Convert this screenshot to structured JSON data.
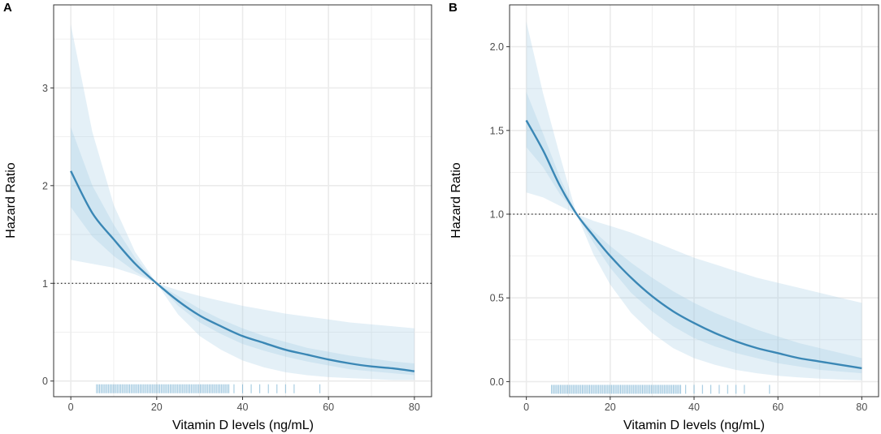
{
  "chart_data": [
    {
      "panel": "A",
      "type": "line",
      "xlabel": "Vitamin D levels (ng/mL)",
      "ylabel": "Hazard Ratio",
      "xlim": [
        -4,
        84
      ],
      "ylim": [
        -0.16,
        3.85
      ],
      "x_ticks": [
        0,
        20,
        40,
        60,
        80
      ],
      "x_tick_labels": [
        "0",
        "20",
        "40",
        "60",
        "80"
      ],
      "y_ticks": [
        0,
        1,
        2,
        3
      ],
      "y_tick_labels": [
        "0",
        "1",
        "2",
        "3"
      ],
      "reference_line_y": 1,
      "grid": true,
      "colors": {
        "line": "#3a87b5",
        "band": "#9ec9e2",
        "rug": "#7fb5d5",
        "grid": "#ebebeb",
        "border": "#333333"
      },
      "series": [
        {
          "name": "Hazard Ratio",
          "x": [
            0,
            5,
            10,
            15,
            20,
            25,
            30,
            35,
            40,
            45,
            50,
            55,
            60,
            65,
            70,
            75,
            80
          ],
          "values": [
            2.15,
            1.72,
            1.45,
            1.2,
            1.0,
            0.82,
            0.67,
            0.56,
            0.46,
            0.39,
            0.32,
            0.27,
            0.22,
            0.18,
            0.15,
            0.13,
            0.1
          ]
        },
        {
          "name": "Inner band upper",
          "x": [
            0,
            5,
            10,
            15,
            20,
            25,
            30,
            35,
            40,
            45,
            50,
            55,
            60,
            65,
            70,
            75,
            80
          ],
          "values": [
            2.6,
            2.0,
            1.6,
            1.26,
            1.0,
            0.87,
            0.74,
            0.63,
            0.54,
            0.46,
            0.4,
            0.34,
            0.3,
            0.26,
            0.23,
            0.2,
            0.18
          ]
        },
        {
          "name": "Inner band lower",
          "x": [
            0,
            5,
            10,
            15,
            20,
            25,
            30,
            35,
            40,
            45,
            50,
            55,
            60,
            65,
            70,
            75,
            80
          ],
          "values": [
            1.78,
            1.48,
            1.28,
            1.12,
            1.0,
            0.77,
            0.6,
            0.48,
            0.38,
            0.31,
            0.25,
            0.2,
            0.16,
            0.12,
            0.1,
            0.08,
            0.06
          ]
        },
        {
          "name": "Outer band upper",
          "x": [
            0,
            5,
            10,
            15,
            20,
            25,
            30,
            35,
            40,
            45,
            50,
            55,
            60,
            65,
            70,
            75,
            80
          ],
          "values": [
            3.65,
            2.55,
            1.8,
            1.32,
            1.0,
            0.93,
            0.87,
            0.82,
            0.77,
            0.73,
            0.69,
            0.66,
            0.63,
            0.6,
            0.58,
            0.56,
            0.54
          ]
        },
        {
          "name": "Outer band lower",
          "x": [
            0,
            5,
            10,
            15,
            20,
            25,
            30,
            35,
            40,
            45,
            50,
            55,
            60,
            65,
            70,
            75,
            80
          ],
          "values": [
            1.24,
            1.2,
            1.16,
            1.09,
            1.0,
            0.68,
            0.46,
            0.32,
            0.21,
            0.14,
            0.09,
            0.06,
            0.04,
            0.03,
            0.02,
            0.01,
            0.01
          ]
        }
      ],
      "rug_range": [
        6,
        58
      ],
      "rug_sparse_x": [
        38,
        40,
        42,
        44,
        46,
        48,
        50,
        52,
        58
      ]
    },
    {
      "panel": "B",
      "type": "line",
      "xlabel": "Vitamin D levels (ng/mL)",
      "ylabel": "Hazard Ratio",
      "xlim": [
        -4,
        84
      ],
      "ylim": [
        -0.09,
        2.25
      ],
      "x_ticks": [
        0,
        20,
        40,
        60,
        80
      ],
      "x_tick_labels": [
        "0",
        "20",
        "40",
        "60",
        "80"
      ],
      "y_ticks": [
        0,
        0.5,
        1,
        1.5,
        2
      ],
      "y_tick_labels": [
        "0.0",
        "0.5",
        "1.0",
        "1.5",
        "2.0"
      ],
      "reference_line_y": 1,
      "grid": true,
      "colors": {
        "line": "#3a87b5",
        "band": "#9ec9e2",
        "rug": "#7fb5d5",
        "grid": "#ebebeb",
        "border": "#333333"
      },
      "series": [
        {
          "name": "Hazard Ratio",
          "x": [
            0,
            4,
            8,
            12,
            16,
            20,
            25,
            30,
            35,
            40,
            45,
            50,
            55,
            60,
            65,
            70,
            75,
            80
          ],
          "values": [
            1.56,
            1.38,
            1.17,
            1.0,
            0.87,
            0.75,
            0.62,
            0.51,
            0.42,
            0.35,
            0.29,
            0.24,
            0.2,
            0.17,
            0.14,
            0.12,
            0.1,
            0.08
          ]
        },
        {
          "name": "Inner band upper",
          "x": [
            0,
            4,
            8,
            12,
            16,
            20,
            25,
            30,
            35,
            40,
            45,
            50,
            55,
            60,
            65,
            70,
            75,
            80
          ],
          "values": [
            1.73,
            1.48,
            1.22,
            1.0,
            0.9,
            0.81,
            0.71,
            0.62,
            0.54,
            0.47,
            0.41,
            0.36,
            0.31,
            0.27,
            0.23,
            0.2,
            0.17,
            0.14
          ]
        },
        {
          "name": "Inner band lower",
          "x": [
            0,
            4,
            8,
            12,
            16,
            20,
            25,
            30,
            35,
            40,
            45,
            50,
            55,
            60,
            65,
            70,
            75,
            80
          ],
          "values": [
            1.4,
            1.28,
            1.12,
            1.0,
            0.83,
            0.68,
            0.53,
            0.42,
            0.33,
            0.26,
            0.21,
            0.17,
            0.14,
            0.11,
            0.09,
            0.07,
            0.06,
            0.05
          ]
        },
        {
          "name": "Outer band upper",
          "x": [
            0,
            4,
            8,
            12,
            16,
            20,
            25,
            30,
            35,
            40,
            45,
            50,
            55,
            60,
            65,
            70,
            75,
            80
          ],
          "values": [
            2.15,
            1.72,
            1.35,
            1.0,
            0.96,
            0.93,
            0.89,
            0.84,
            0.79,
            0.74,
            0.7,
            0.66,
            0.62,
            0.59,
            0.56,
            0.53,
            0.5,
            0.47
          ]
        },
        {
          "name": "Outer band lower",
          "x": [
            0,
            4,
            8,
            12,
            16,
            20,
            25,
            30,
            35,
            40,
            45,
            50,
            55,
            60,
            65,
            70,
            75,
            80
          ],
          "values": [
            1.13,
            1.1,
            1.05,
            1.0,
            0.76,
            0.58,
            0.41,
            0.29,
            0.2,
            0.14,
            0.1,
            0.07,
            0.05,
            0.035,
            0.025,
            0.018,
            0.012,
            0.008
          ]
        }
      ],
      "rug_range": [
        6,
        58
      ],
      "rug_sparse_x": [
        38,
        40,
        42,
        44,
        46,
        48,
        50,
        52,
        58
      ]
    }
  ]
}
